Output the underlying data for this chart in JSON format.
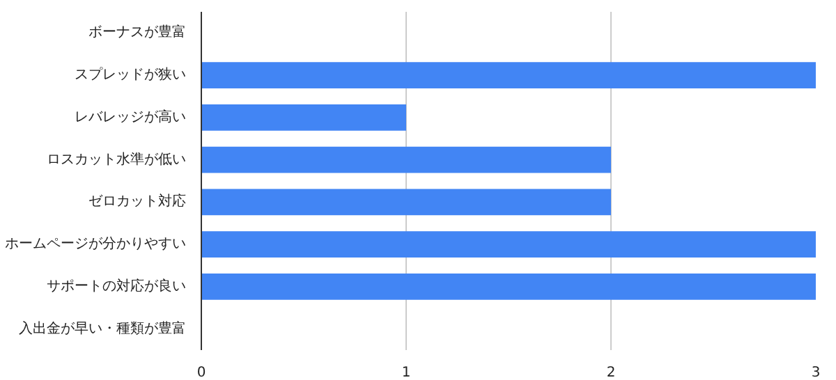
{
  "chart_data": {
    "type": "bar",
    "orientation": "horizontal",
    "categories": [
      "ボーナスが豊富",
      "スプレッドが狭い",
      "レバレッジが高い",
      "ロスカット水準が低い",
      "ゼロカット対応",
      "ホームページが分かりやすい",
      "サポートの対応が良い",
      "入出金が早い・種類が豊富"
    ],
    "values": [
      0,
      3,
      1,
      2,
      2,
      3,
      3,
      0
    ],
    "color": "#4285f4",
    "xlim": [
      0,
      3
    ],
    "xticks": [
      0,
      1,
      2,
      3
    ],
    "grid": "x"
  }
}
